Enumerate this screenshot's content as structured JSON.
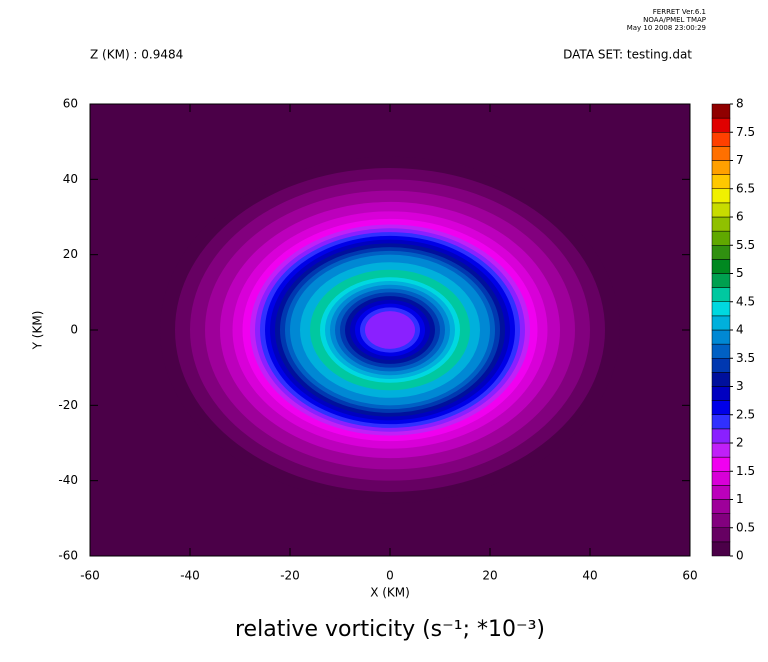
{
  "header": {
    "program": "FERRET  Ver.6.1",
    "org": "NOAA/PMEL TMAP",
    "date": "May 10 2008 23:00:29"
  },
  "chart_data": {
    "type": "contour",
    "title": "relative vorticity (s⁻¹; *10⁻³)",
    "subtitle_left": "Z (KM) : 0.9484",
    "subtitle_right": "DATA SET: testing.dat",
    "x_label": "X (KM)",
    "y_label": "Y (KM)",
    "xlim": [
      -60,
      60
    ],
    "ylim": [
      -60,
      60
    ],
    "xticks": [
      -60,
      -40,
      -20,
      0,
      20,
      40,
      60
    ],
    "yticks": [
      -60,
      -40,
      -20,
      0,
      20,
      40,
      60
    ],
    "profile": {
      "center": [
        0,
        0
      ],
      "r": [
        85,
        46,
        43,
        40,
        37,
        34,
        31.5,
        29.5,
        28,
        27,
        26,
        25,
        24,
        23,
        22,
        21,
        20,
        18,
        16,
        14,
        13,
        12,
        11,
        10,
        9,
        8,
        7,
        6,
        5
      ],
      "values": [
        0,
        0.1,
        0.3,
        0.55,
        0.8,
        1.05,
        1.3,
        1.55,
        1.8,
        2.05,
        2.3,
        2.55,
        2.8,
        3.1,
        3.35,
        3.6,
        3.85,
        4.1,
        4.6,
        4.35,
        4.1,
        3.85,
        3.6,
        3.35,
        3.1,
        2.85,
        2.6,
        2.35,
        2.1
      ]
    },
    "colorbar": {
      "lim": [
        0,
        8
      ],
      "ticks": [
        0,
        0.5,
        1,
        1.5,
        2,
        2.5,
        3,
        3.5,
        4,
        4.5,
        5,
        5.5,
        6,
        6.5,
        7,
        7.5,
        8
      ],
      "colors": [
        "#4b0048",
        "#660062",
        "#82007e",
        "#9e009a",
        "#bc00bc",
        "#d800d8",
        "#f000f0",
        "#c020f8",
        "#8a20ff",
        "#3030ff",
        "#0000e8",
        "#0000c0",
        "#00109c",
        "#0038b0",
        "#0060c4",
        "#0088d4",
        "#00b0dc",
        "#00d8e0",
        "#00c8a0",
        "#00a050",
        "#008820",
        "#309010",
        "#60a800",
        "#90c000",
        "#c8dc00",
        "#f0f000",
        "#ffc800",
        "#ffa000",
        "#ff7000",
        "#ff4000",
        "#e00000",
        "#900000"
      ]
    }
  }
}
